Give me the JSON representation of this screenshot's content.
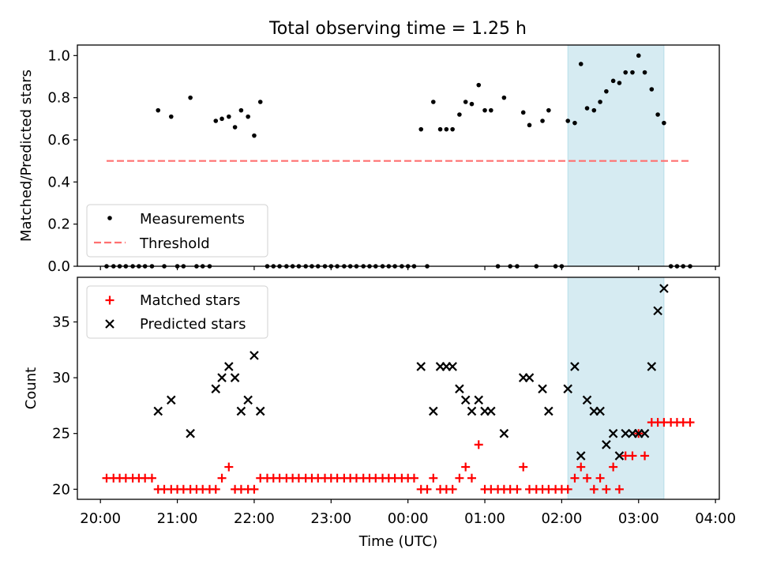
{
  "chart_data": {
    "title": "Total observing time = 1.25 h",
    "xlabel": "Time (UTC)",
    "x_ticks": [
      "20:00",
      "21:00",
      "22:00",
      "23:00",
      "00:00",
      "01:00",
      "02:00",
      "03:00",
      "04:00"
    ],
    "xlim_hours": [
      19.7,
      28.05
    ],
    "highlight_span_hours": [
      26.08,
      27.33
    ],
    "highlight_color": "#add8e6",
    "panels": [
      {
        "type": "scatter",
        "ylabel": "Matched/Predicted stars",
        "ylim": [
          0,
          1.05
        ],
        "y_ticks": [
          "0.0",
          "0.2",
          "0.4",
          "0.6",
          "0.8",
          "1.0"
        ],
        "legend_position": "lower-left",
        "series": [
          {
            "name": "Measurements",
            "marker": "dot",
            "color": "#000000",
            "points": [
              [
                20.08,
                0
              ],
              [
                20.17,
                0
              ],
              [
                20.25,
                0
              ],
              [
                20.33,
                0
              ],
              [
                20.42,
                0
              ],
              [
                20.5,
                0
              ],
              [
                20.58,
                0
              ],
              [
                20.67,
                0
              ],
              [
                20.75,
                0.74
              ],
              [
                20.83,
                0
              ],
              [
                20.92,
                0.71
              ],
              [
                21.0,
                0
              ],
              [
                21.08,
                0
              ],
              [
                21.17,
                0.8
              ],
              [
                21.25,
                0
              ],
              [
                21.33,
                0
              ],
              [
                21.42,
                0
              ],
              [
                21.5,
                0.69
              ],
              [
                21.58,
                0.7
              ],
              [
                21.67,
                0.71
              ],
              [
                21.75,
                0.66
              ],
              [
                21.83,
                0.74
              ],
              [
                21.92,
                0.71
              ],
              [
                22.0,
                0.62
              ],
              [
                22.08,
                0.78
              ],
              [
                22.17,
                0
              ],
              [
                22.25,
                0
              ],
              [
                22.33,
                0
              ],
              [
                22.42,
                0
              ],
              [
                22.5,
                0
              ],
              [
                22.58,
                0
              ],
              [
                22.67,
                0
              ],
              [
                22.75,
                0
              ],
              [
                22.83,
                0
              ],
              [
                22.92,
                0
              ],
              [
                23.0,
                0
              ],
              [
                23.08,
                0
              ],
              [
                23.17,
                0
              ],
              [
                23.25,
                0
              ],
              [
                23.33,
                0
              ],
              [
                23.42,
                0
              ],
              [
                23.5,
                0
              ],
              [
                23.58,
                0
              ],
              [
                23.67,
                0
              ],
              [
                23.75,
                0
              ],
              [
                23.83,
                0
              ],
              [
                23.92,
                0
              ],
              [
                24.0,
                0
              ],
              [
                24.08,
                0
              ],
              [
                24.17,
                0.65
              ],
              [
                24.25,
                0
              ],
              [
                24.33,
                0.78
              ],
              [
                24.42,
                0.65
              ],
              [
                24.5,
                0.65
              ],
              [
                24.58,
                0.65
              ],
              [
                24.67,
                0.72
              ],
              [
                24.75,
                0.78
              ],
              [
                24.83,
                0.77
              ],
              [
                24.92,
                0.86
              ],
              [
                25.0,
                0.74
              ],
              [
                25.08,
                0.74
              ],
              [
                25.17,
                0
              ],
              [
                25.25,
                0.8
              ],
              [
                25.33,
                0
              ],
              [
                25.42,
                0
              ],
              [
                25.5,
                0.73
              ],
              [
                25.58,
                0.67
              ],
              [
                25.67,
                0
              ],
              [
                25.75,
                0.69
              ],
              [
                25.83,
                0.74
              ],
              [
                25.92,
                0
              ],
              [
                26.0,
                0
              ],
              [
                26.08,
                0.69
              ],
              [
                26.17,
                0.68
              ],
              [
                26.25,
                0.96
              ],
              [
                26.33,
                0.75
              ],
              [
                26.42,
                0.74
              ],
              [
                26.5,
                0.78
              ],
              [
                26.58,
                0.83
              ],
              [
                26.67,
                0.88
              ],
              [
                26.75,
                0.87
              ],
              [
                26.83,
                0.92
              ],
              [
                26.92,
                0.92
              ],
              [
                27.0,
                1.0
              ],
              [
                27.08,
                0.92
              ],
              [
                27.17,
                0.84
              ],
              [
                27.25,
                0.72
              ],
              [
                27.33,
                0.68
              ],
              [
                27.42,
                0
              ],
              [
                27.5,
                0
              ],
              [
                27.58,
                0
              ],
              [
                27.67,
                0
              ]
            ]
          },
          {
            "name": "Threshold",
            "marker": "dashed-line",
            "color": "#ff7070",
            "x": [
              20.08,
              27.67
            ],
            "y": [
              0.5,
              0.5
            ]
          }
        ]
      },
      {
        "type": "scatter",
        "ylabel": "Count",
        "ylim": [
          19.1,
          39.0
        ],
        "y_ticks": [
          "20",
          "25",
          "30",
          "35"
        ],
        "legend_position": "upper-left",
        "series": [
          {
            "name": "Matched stars",
            "marker": "plus",
            "color": "#ff0000",
            "points": [
              [
                20.08,
                21
              ],
              [
                20.17,
                21
              ],
              [
                20.25,
                21
              ],
              [
                20.33,
                21
              ],
              [
                20.42,
                21
              ],
              [
                20.5,
                21
              ],
              [
                20.58,
                21
              ],
              [
                20.67,
                21
              ],
              [
                20.75,
                20
              ],
              [
                20.83,
                20
              ],
              [
                20.92,
                20
              ],
              [
                21.0,
                20
              ],
              [
                21.08,
                20
              ],
              [
                21.17,
                20
              ],
              [
                21.25,
                20
              ],
              [
                21.33,
                20
              ],
              [
                21.42,
                20
              ],
              [
                21.5,
                20
              ],
              [
                21.58,
                21
              ],
              [
                21.67,
                22
              ],
              [
                21.75,
                20
              ],
              [
                21.83,
                20
              ],
              [
                21.92,
                20
              ],
              [
                22.0,
                20
              ],
              [
                22.08,
                21
              ],
              [
                22.17,
                21
              ],
              [
                22.25,
                21
              ],
              [
                22.33,
                21
              ],
              [
                22.42,
                21
              ],
              [
                22.5,
                21
              ],
              [
                22.58,
                21
              ],
              [
                22.67,
                21
              ],
              [
                22.75,
                21
              ],
              [
                22.83,
                21
              ],
              [
                22.92,
                21
              ],
              [
                23.0,
                21
              ],
              [
                23.08,
                21
              ],
              [
                23.17,
                21
              ],
              [
                23.25,
                21
              ],
              [
                23.33,
                21
              ],
              [
                23.42,
                21
              ],
              [
                23.5,
                21
              ],
              [
                23.58,
                21
              ],
              [
                23.67,
                21
              ],
              [
                23.75,
                21
              ],
              [
                23.83,
                21
              ],
              [
                23.92,
                21
              ],
              [
                24.0,
                21
              ],
              [
                24.08,
                21
              ],
              [
                24.17,
                20
              ],
              [
                24.25,
                20
              ],
              [
                24.33,
                21
              ],
              [
                24.42,
                20
              ],
              [
                24.5,
                20
              ],
              [
                24.58,
                20
              ],
              [
                24.67,
                21
              ],
              [
                24.75,
                22
              ],
              [
                24.83,
                21
              ],
              [
                24.92,
                24
              ],
              [
                25.0,
                20
              ],
              [
                25.08,
                20
              ],
              [
                25.17,
                20
              ],
              [
                25.25,
                20
              ],
              [
                25.33,
                20
              ],
              [
                25.42,
                20
              ],
              [
                25.5,
                22
              ],
              [
                25.58,
                20
              ],
              [
                25.67,
                20
              ],
              [
                25.75,
                20
              ],
              [
                25.83,
                20
              ],
              [
                25.92,
                20
              ],
              [
                26.0,
                20
              ],
              [
                26.08,
                20
              ],
              [
                26.17,
                21
              ],
              [
                26.25,
                22
              ],
              [
                26.33,
                21
              ],
              [
                26.42,
                20
              ],
              [
                26.5,
                21
              ],
              [
                26.58,
                20
              ],
              [
                26.67,
                22
              ],
              [
                26.75,
                20
              ],
              [
                26.83,
                23
              ],
              [
                26.92,
                23
              ],
              [
                27.0,
                25
              ],
              [
                27.08,
                23
              ],
              [
                27.17,
                26
              ],
              [
                27.25,
                26
              ],
              [
                27.33,
                26
              ],
              [
                27.42,
                26
              ],
              [
                27.5,
                26
              ],
              [
                27.58,
                26
              ],
              [
                27.67,
                26
              ]
            ]
          },
          {
            "name": "Predicted stars",
            "marker": "x",
            "color": "#000000",
            "points": [
              [
                20.75,
                27
              ],
              [
                20.92,
                28
              ],
              [
                21.17,
                25
              ],
              [
                21.5,
                29
              ],
              [
                21.58,
                30
              ],
              [
                21.67,
                31
              ],
              [
                21.75,
                30
              ],
              [
                21.83,
                27
              ],
              [
                21.92,
                28
              ],
              [
                22.0,
                32
              ],
              [
                22.08,
                27
              ],
              [
                24.17,
                31
              ],
              [
                24.33,
                27
              ],
              [
                24.42,
                31
              ],
              [
                24.5,
                31
              ],
              [
                24.58,
                31
              ],
              [
                24.67,
                29
              ],
              [
                24.75,
                28
              ],
              [
                24.83,
                27
              ],
              [
                24.92,
                28
              ],
              [
                25.0,
                27
              ],
              [
                25.08,
                27
              ],
              [
                25.25,
                25
              ],
              [
                25.5,
                30
              ],
              [
                25.58,
                30
              ],
              [
                25.75,
                29
              ],
              [
                25.83,
                27
              ],
              [
                26.08,
                29
              ],
              [
                26.17,
                31
              ],
              [
                26.25,
                23
              ],
              [
                26.33,
                28
              ],
              [
                26.42,
                27
              ],
              [
                26.5,
                27
              ],
              [
                26.58,
                24
              ],
              [
                26.67,
                25
              ],
              [
                26.75,
                23
              ],
              [
                26.83,
                25
              ],
              [
                26.92,
                25
              ],
              [
                27.0,
                25
              ],
              [
                27.08,
                25
              ],
              [
                27.17,
                31
              ],
              [
                27.25,
                36
              ],
              [
                27.33,
                38
              ]
            ]
          }
        ]
      }
    ]
  }
}
